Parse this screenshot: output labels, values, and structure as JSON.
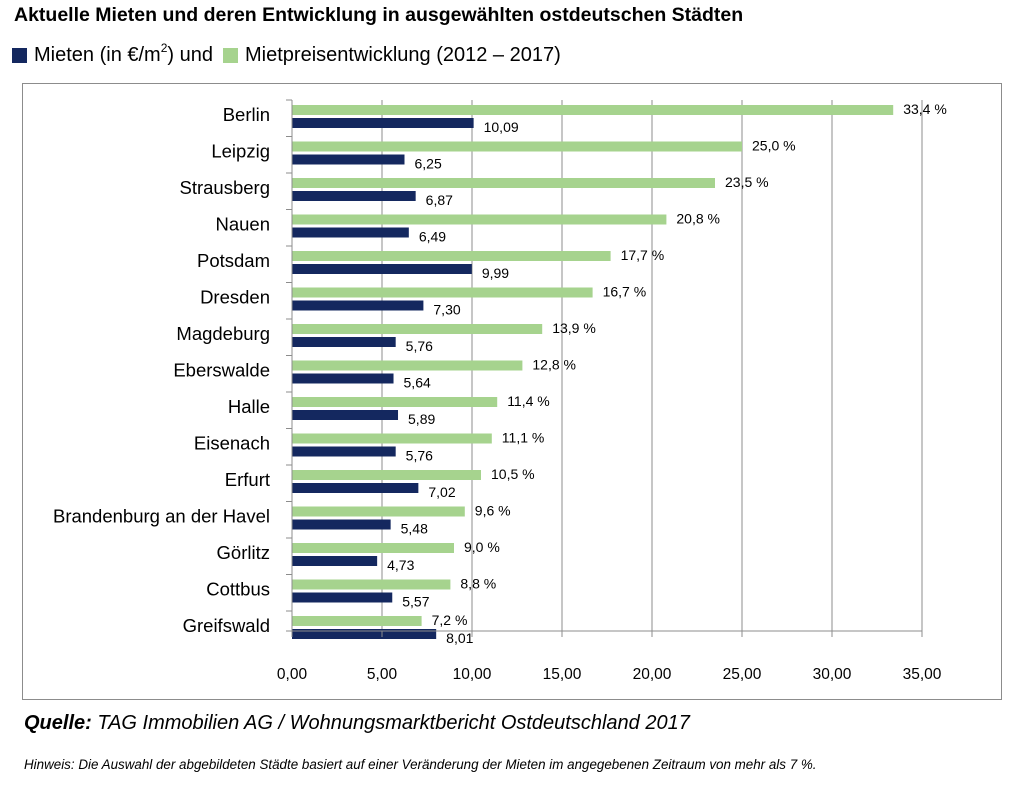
{
  "title": "Aktuelle Mieten und deren Entwicklung in ausgewählten ostdeutschen Städten",
  "legend": {
    "rent_label_prefix": "Mieten (in €/m",
    "rent_label_sup": "2",
    "rent_label_suffix": ") und",
    "growth_label": "Mietpreisentwicklung (2012 – 2017)",
    "rent_color": "#14285f",
    "growth_color": "#a6d38e"
  },
  "source": {
    "label": "Quelle:",
    "text": " TAG Immobilien AG / Wohnungsmarktbericht Ostdeutschland 2017"
  },
  "note": "Hinweis: Die Auswahl der abgebildeten Städte basiert auf einer Veränderung der Mieten im angegebenen Zeitraum von mehr als 7 %.",
  "chart_data": {
    "type": "bar",
    "orientation": "horizontal",
    "categories": [
      "Berlin",
      "Leipzig",
      "Strausberg",
      "Nauen",
      "Potsdam",
      "Dresden",
      "Magdeburg",
      "Eberswalde",
      "Halle",
      "Eisenach",
      "Erfurt",
      "Brandenburg an der Havel",
      "Görlitz",
      "Cottbus",
      "Greifswald"
    ],
    "series": [
      {
        "name": "Mietpreisentwicklung (2012 – 2017)",
        "color": "#a6d38e",
        "values": [
          33.4,
          25.0,
          23.5,
          20.8,
          17.7,
          16.7,
          13.9,
          12.8,
          11.4,
          11.1,
          10.5,
          9.6,
          9.0,
          8.8,
          7.2
        ],
        "labels": [
          "33,4 %",
          "25,0 %",
          "23,5 %",
          "20,8 %",
          "17,7 %",
          "16,7 %",
          "13,9 %",
          "12,8 %",
          "11,4 %",
          "11,1 %",
          "10,5 %",
          "9,6 %",
          "9,0 %",
          "8,8 %",
          "7,2 %"
        ]
      },
      {
        "name": "Mieten (in €/m²)",
        "color": "#14285f",
        "values": [
          10.09,
          6.25,
          6.87,
          6.49,
          9.99,
          7.3,
          5.76,
          5.64,
          5.89,
          5.76,
          7.02,
          5.48,
          4.73,
          5.57,
          8.01
        ],
        "labels": [
          "10,09",
          "6,25",
          "6,87",
          "6,49",
          "9,99",
          "7,30",
          "5,76",
          "5,64",
          "5,89",
          "5,76",
          "7,02",
          "5,48",
          "4,73",
          "5,57",
          "8,01"
        ]
      }
    ],
    "xlim": [
      0,
      35
    ],
    "xticks": [
      0,
      5,
      10,
      15,
      20,
      25,
      30,
      35
    ],
    "xtick_labels": [
      "0,00",
      "5,00",
      "10,00",
      "15,00",
      "20,00",
      "25,00",
      "30,00",
      "35,00"
    ],
    "grid": "vertical",
    "legend_position": "top"
  }
}
